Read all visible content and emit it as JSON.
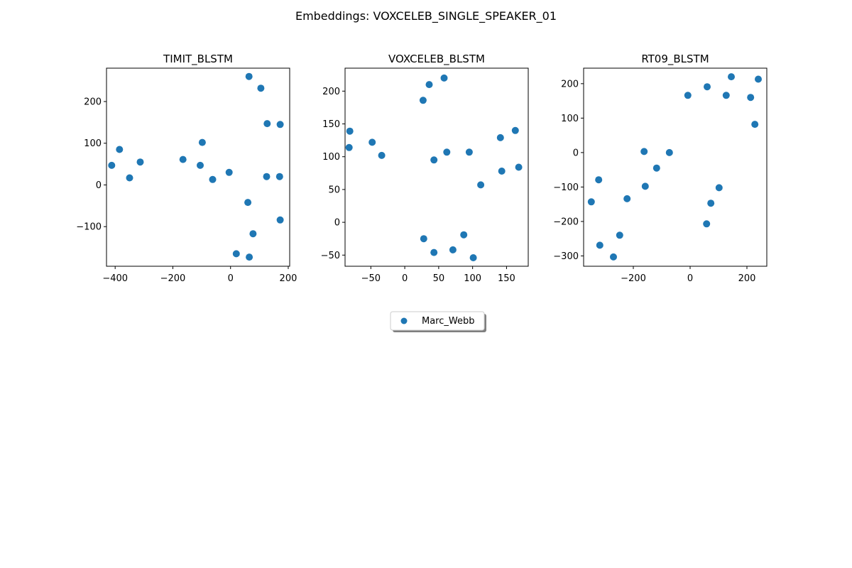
{
  "figure": {
    "suptitle": "Embeddings: VOXCELEB_SINGLE_SPEAKER_01",
    "legend": {
      "label": "Marc_Webb",
      "color": "#1f77b4",
      "placement": "lower-center"
    }
  },
  "chart_data": [
    {
      "type": "scatter",
      "title": "TIMIT_BLSTM",
      "xlabel": "",
      "ylabel": "",
      "xlim": [
        -430,
        205
      ],
      "ylim": [
        -195,
        280
      ],
      "xticks": [
        -400,
        -200,
        0,
        200
      ],
      "xtick_labels": [
        "−400",
        "−200",
        "0",
        "200"
      ],
      "yticks": [
        -100,
        0,
        100,
        200
      ],
      "ytick_labels": [
        "−100",
        "0",
        "100",
        "200"
      ],
      "series": [
        {
          "name": "Marc_Webb",
          "x": [
            64,
            105,
            127,
            172,
            -385,
            -98,
            -412,
            -313,
            -350,
            -165,
            -105,
            -5,
            -62,
            125,
            170,
            60,
            78,
            172,
            20,
            65
          ],
          "y": [
            260,
            232,
            147,
            145,
            85,
            102,
            47,
            55,
            17,
            61,
            47,
            30,
            13,
            20,
            20,
            -42,
            -117,
            -84,
            -165,
            -173
          ]
        }
      ]
    },
    {
      "type": "scatter",
      "title": "VOXCELEB_BLSTM",
      "xlabel": "",
      "ylabel": "",
      "xlim": [
        -88,
        182
      ],
      "ylim": [
        -67,
        235
      ],
      "xticks": [
        -50,
        0,
        50,
        100,
        150
      ],
      "xtick_labels": [
        "−50",
        "0",
        "50",
        "100",
        "150"
      ],
      "yticks": [
        -50,
        0,
        50,
        100,
        150,
        200
      ],
      "ytick_labels": [
        "−50",
        "0",
        "50",
        "100",
        "150",
        "200"
      ],
      "series": [
        {
          "name": "Marc_Webb",
          "x": [
            58,
            36,
            27,
            -81,
            -82,
            -48,
            -34,
            43,
            62,
            95,
            141,
            163,
            143,
            168,
            112,
            28,
            87,
            43,
            71,
            101
          ],
          "y": [
            220,
            210,
            186,
            139,
            114,
            122,
            102,
            95,
            107,
            107,
            129,
            140,
            78,
            84,
            57,
            -25,
            -19,
            -46,
            -42,
            -54
          ]
        }
      ]
    },
    {
      "type": "scatter",
      "title": "RT09_BLSTM",
      "xlabel": "",
      "ylabel": "",
      "xlim": [
        -375,
        270
      ],
      "ylim": [
        -330,
        245
      ],
      "xticks": [
        -200,
        0,
        200
      ],
      "xtick_labels": [
        "−200",
        "0",
        "200"
      ],
      "yticks": [
        -300,
        -200,
        -100,
        0,
        100,
        200
      ],
      "ytick_labels": [
        "−300",
        "−200",
        "−100",
        "0",
        "100",
        "200"
      ],
      "series": [
        {
          "name": "Marc_Webb",
          "x": [
            145,
            240,
            -8,
            60,
            127,
            213,
            228,
            -162,
            -73,
            -118,
            -158,
            -322,
            -222,
            -348,
            102,
            73,
            -248,
            -318,
            -270,
            58
          ],
          "y": [
            220,
            213,
            166,
            191,
            166,
            160,
            82,
            3,
            0,
            -45,
            -98,
            -79,
            -134,
            -143,
            -102,
            -147,
            -240,
            -269,
            -303,
            -207
          ]
        }
      ]
    }
  ]
}
